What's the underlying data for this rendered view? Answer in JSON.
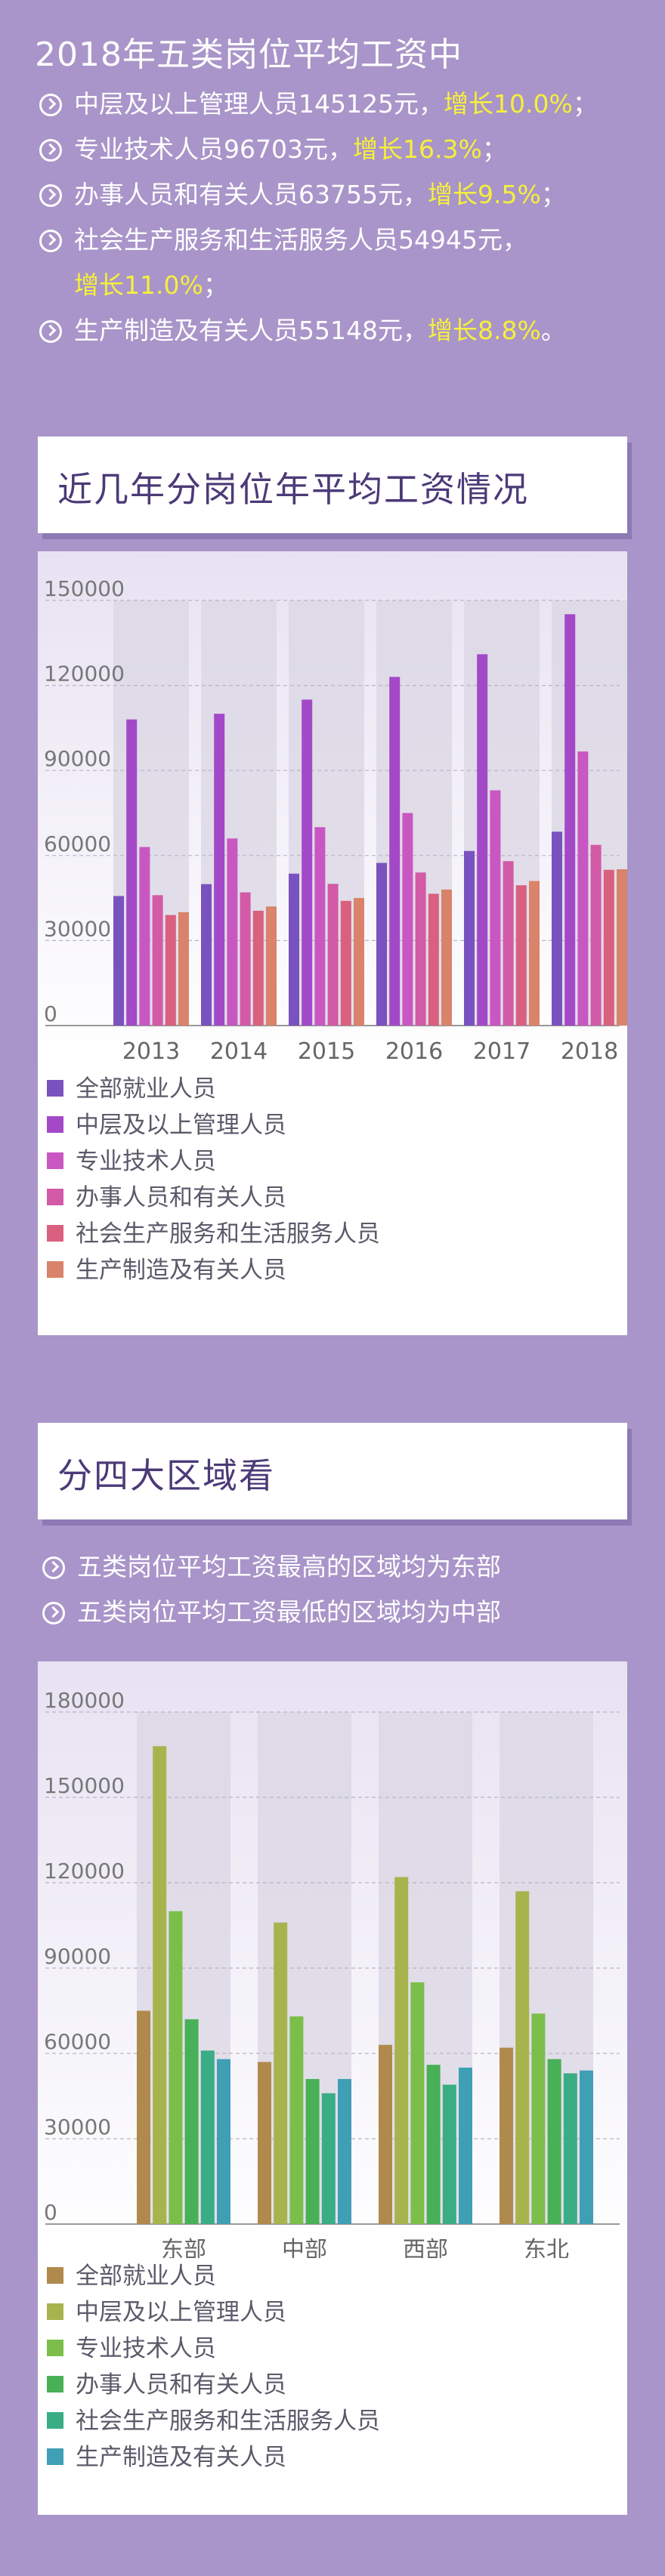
{
  "top": {
    "title": "2018年五类岗位平均工资中",
    "bullets": [
      {
        "text": "中层及以上管理人员145125元，",
        "highlight": "增长10.0%",
        "tail": "；"
      },
      {
        "text": "专业技术人员96703元，",
        "highlight": "增长16.3%",
        "tail": "；"
      },
      {
        "text": "办事人员和有关人员63755元，",
        "highlight": "增长9.5%",
        "tail": "；"
      },
      {
        "text": "社会生产服务和生活服务人员54945元，",
        "highlight": "增长11.0%",
        "tail": "；"
      },
      {
        "text": "生产制造及有关人员55148元，",
        "highlight": "增长8.8%",
        "tail": "。"
      }
    ]
  },
  "section1": {
    "header": "近几年分岗位年平均工资情况"
  },
  "section2": {
    "header": "分四大区域看",
    "notes": [
      "五类岗位平均工资最高的区域均为东部",
      "五类岗位平均工资最低的区域均为中部"
    ]
  },
  "chart_data": [
    {
      "type": "bar",
      "categories": [
        "2013",
        "2014",
        "2015",
        "2016",
        "2017",
        "2018"
      ],
      "ylim": [
        0,
        150000
      ],
      "yticks": [
        "0",
        "30000",
        "60000",
        "90000",
        "120000",
        "150000"
      ],
      "grid": true,
      "legend_position": "bottom",
      "series": [
        {
          "name": "全部就业人员",
          "color": "#7a52bf",
          "values": [
            45700,
            49900,
            53600,
            57400,
            61600,
            68400
          ]
        },
        {
          "name": "中层及以上管理人员",
          "color": "#a349c8",
          "values": [
            108000,
            110000,
            115000,
            123000,
            131000,
            145125
          ]
        },
        {
          "name": "专业技术人员",
          "color": "#c957c2",
          "values": [
            63000,
            66000,
            70000,
            75000,
            83000,
            96703
          ]
        },
        {
          "name": "办事人员和有关人员",
          "color": "#d25aa6",
          "values": [
            46000,
            47000,
            50000,
            54000,
            58000,
            63755
          ]
        },
        {
          "name": "社会生产服务和生活服务人员",
          "color": "#d9607f",
          "values": [
            39000,
            40500,
            44000,
            46500,
            49500,
            54945
          ]
        },
        {
          "name": "生产制造及有关人员",
          "color": "#d8836a",
          "values": [
            40000,
            42000,
            45000,
            48000,
            51000,
            55148
          ]
        }
      ]
    },
    {
      "type": "bar",
      "categories": [
        "东部",
        "中部",
        "西部",
        "东北"
      ],
      "ylim": [
        0,
        180000
      ],
      "yticks": [
        "0",
        "30000",
        "60000",
        "90000",
        "120000",
        "150000",
        "180000"
      ],
      "grid": true,
      "legend_position": "bottom",
      "series": [
        {
          "name": "全部就业人员",
          "color": "#b08a4c",
          "values": [
            75000,
            57000,
            63000,
            62000
          ]
        },
        {
          "name": "中层及以上管理人员",
          "color": "#a7b44e",
          "values": [
            168000,
            106000,
            122000,
            117000
          ]
        },
        {
          "name": "专业技术人员",
          "color": "#7bbf4a",
          "values": [
            110000,
            73000,
            85000,
            74000
          ]
        },
        {
          "name": "办事人员和有关人员",
          "color": "#48b056",
          "values": [
            72000,
            51000,
            56000,
            58000
          ]
        },
        {
          "name": "社会生产服务和生活服务人员",
          "color": "#3aad85",
          "values": [
            61000,
            46000,
            49000,
            53000
          ]
        },
        {
          "name": "生产制造及有关人员",
          "color": "#3f9fb5",
          "values": [
            58000,
            51000,
            55000,
            54000
          ]
        }
      ]
    }
  ]
}
